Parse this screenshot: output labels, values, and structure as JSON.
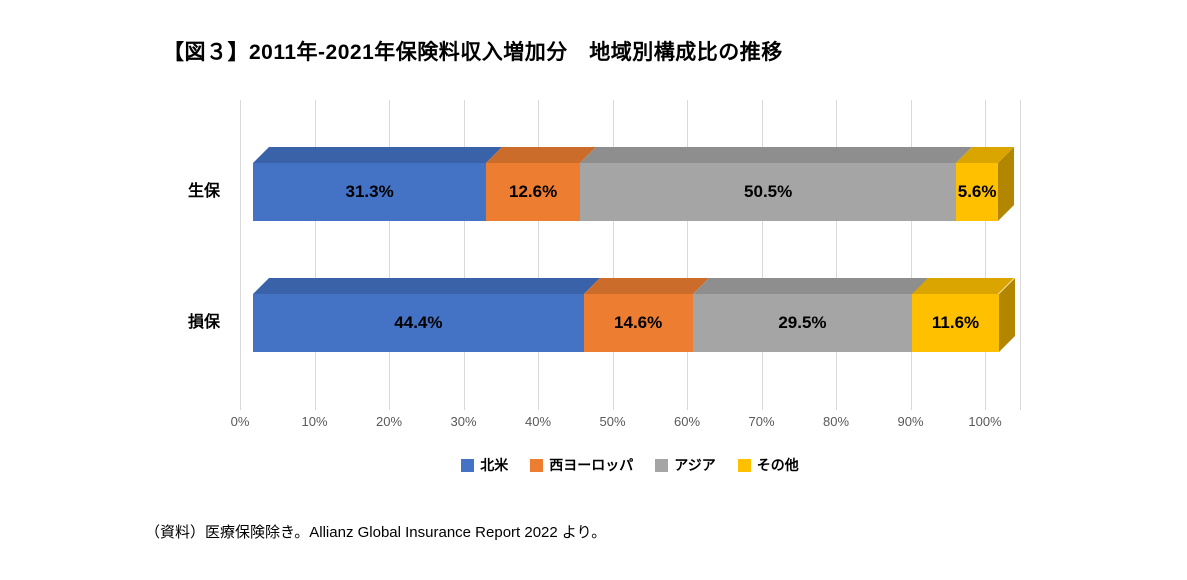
{
  "page": {
    "background": "#ffffff"
  },
  "title": "【図３】2011年-2021年保険料収入増加分　地域別構成比の推移",
  "chart_data": {
    "type": "bar",
    "orientation": "horizontal",
    "stacked": true,
    "style": "3d",
    "categories": [
      "生保",
      "損保"
    ],
    "series": [
      {
        "name": "北米",
        "color": "#4472C4",
        "values": [
          31.3,
          44.4
        ],
        "labels": [
          "31.3%",
          "44.4%"
        ]
      },
      {
        "name": "西ヨーロッパ",
        "color": "#ED7D31",
        "values": [
          12.6,
          14.6
        ],
        "labels": [
          "12.6%",
          "14.6%"
        ]
      },
      {
        "name": "アジア",
        "color": "#A5A5A5",
        "values": [
          50.5,
          29.5
        ],
        "labels": [
          "50.5%",
          "29.5%"
        ]
      },
      {
        "name": "その他",
        "color": "#FFC000",
        "values": [
          5.6,
          11.6
        ],
        "labels": [
          "5.6%",
          "11.6%"
        ]
      }
    ],
    "x_ticks": [
      "0%",
      "10%",
      "20%",
      "30%",
      "40%",
      "50%",
      "60%",
      "70%",
      "80%",
      "90%",
      "100%"
    ],
    "xlim": [
      0,
      100
    ],
    "grid": true,
    "legend_position": "bottom",
    "gridline_color": "#D9D9D9",
    "tick_color": "#595959"
  },
  "footer": "（資料）医療保険除き。Allianz Global Insurance Report 2022 より。"
}
